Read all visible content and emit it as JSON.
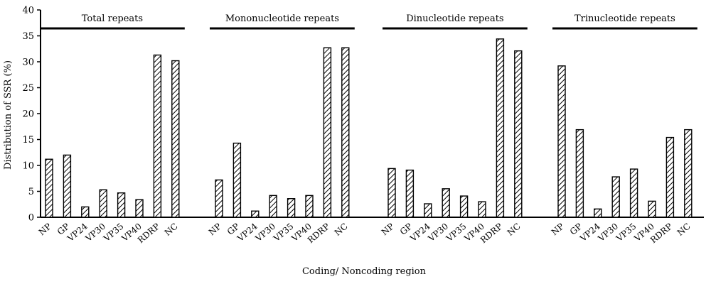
{
  "chart_data": {
    "type": "bar",
    "ylabel": "Distribution of SSR (%)",
    "xlabel": "Coding/ Noncoding region",
    "ylim": [
      0,
      40
    ],
    "yticks": [
      0,
      5,
      10,
      15,
      20,
      25,
      30,
      35,
      40
    ],
    "categories": [
      "NP",
      "GP",
      "VP24",
      "VP30",
      "VP35",
      "VP40",
      "RDRP",
      "NC"
    ],
    "groups": [
      {
        "name": "Total repeats",
        "values": [
          11.2,
          12.0,
          2.0,
          5.3,
          4.7,
          3.4,
          31.3,
          30.2
        ]
      },
      {
        "name": "Mononucleotide repeats",
        "values": [
          7.2,
          14.3,
          1.2,
          4.2,
          3.6,
          4.2,
          32.7,
          32.7
        ]
      },
      {
        "name": "Dinucleotide repeats",
        "values": [
          9.4,
          9.1,
          2.6,
          5.5,
          4.1,
          3.0,
          34.4,
          32.1
        ]
      },
      {
        "name": "Trinucleotide repeats",
        "values": [
          29.2,
          16.9,
          1.6,
          7.8,
          9.3,
          3.1,
          15.4,
          16.9
        ]
      }
    ]
  }
}
